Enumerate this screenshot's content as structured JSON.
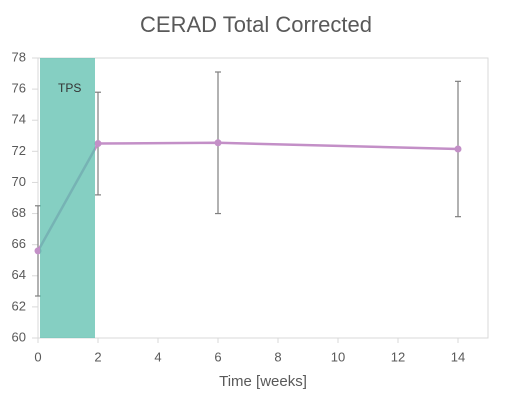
{
  "chart_data": {
    "type": "line",
    "title": "CERAD Total Corrected",
    "x_label": "Time [weeks]",
    "x": [
      0,
      2,
      6,
      14
    ],
    "series": [
      {
        "name": "CERAD Total Corrected",
        "color": "#c38fc7",
        "values": [
          65.6,
          72.5,
          72.55,
          72.15
        ],
        "errors": [
          2.9,
          3.3,
          4.55,
          4.35
        ],
        "error_color": "#7f7f7f"
      }
    ],
    "xlim": [
      0,
      15
    ],
    "xticks": [
      0,
      2,
      4,
      6,
      8,
      10,
      12,
      14
    ],
    "ylim": [
      60,
      78
    ],
    "yticks": [
      60,
      62,
      64,
      66,
      68,
      70,
      72,
      74,
      76,
      78
    ],
    "grid": false,
    "shaded_region": {
      "label": "TPS",
      "x": [
        0,
        1.9
      ],
      "color": "#5cbfae"
    }
  }
}
